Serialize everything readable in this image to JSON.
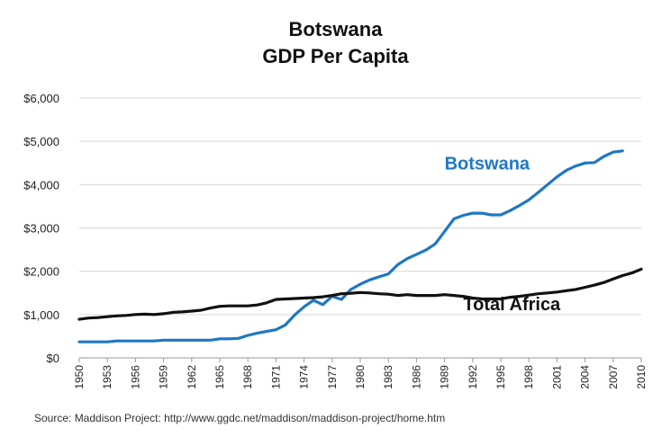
{
  "chart_data": {
    "type": "line",
    "title": "Botswana",
    "subtitle": "GDP Per Capita",
    "xlabel": "",
    "ylabel": "",
    "xlim": [
      1950,
      2010
    ],
    "ylim": [
      0,
      6000
    ],
    "y_ticks": [
      0,
      1000,
      2000,
      3000,
      4000,
      5000,
      6000
    ],
    "y_tick_labels": [
      "$0",
      "$1,000",
      "$2,000",
      "$3,000",
      "$4,000",
      "$5,000",
      "$6,000"
    ],
    "x_ticks": [
      1950,
      1953,
      1956,
      1959,
      1962,
      1965,
      1968,
      1971,
      1974,
      1977,
      1980,
      1983,
      1986,
      1989,
      1992,
      1995,
      1998,
      2001,
      2004,
      2007,
      2010
    ],
    "grid": "horizontal",
    "legend": "inline labels",
    "series": [
      {
        "name": "Botswana",
        "color": "#1f77c4",
        "label_at": [
          1989,
          4350
        ],
        "x": [
          1950,
          1951,
          1952,
          1953,
          1954,
          1955,
          1956,
          1957,
          1958,
          1959,
          1960,
          1961,
          1962,
          1963,
          1964,
          1965,
          1966,
          1967,
          1968,
          1969,
          1970,
          1971,
          1972,
          1973,
          1974,
          1975,
          1976,
          1977,
          1978,
          1979,
          1980,
          1981,
          1982,
          1983,
          1984,
          1985,
          1986,
          1987,
          1988,
          1989,
          1990,
          1991,
          1992,
          1993,
          1994,
          1995,
          1996,
          1997,
          1998,
          1999,
          2000,
          2001,
          2002,
          2003,
          2004,
          2005,
          2006,
          2007,
          2008
        ],
        "values": [
          370,
          370,
          370,
          370,
          390,
          390,
          390,
          390,
          390,
          410,
          410,
          410,
          410,
          410,
          410,
          440,
          440,
          450,
          520,
          570,
          610,
          650,
          760,
          990,
          1180,
          1330,
          1230,
          1420,
          1350,
          1580,
          1700,
          1800,
          1870,
          1940,
          2150,
          2290,
          2390,
          2490,
          2630,
          2920,
          3210,
          3290,
          3340,
          3340,
          3300,
          3300,
          3400,
          3520,
          3650,
          3820,
          4000,
          4180,
          4330,
          4430,
          4500,
          4510,
          4650,
          4750,
          4780
        ]
      },
      {
        "name": "Total Africa",
        "color": "#111111",
        "label_at": [
          1991,
          1100
        ],
        "x": [
          1950,
          1951,
          1952,
          1953,
          1954,
          1955,
          1956,
          1957,
          1958,
          1959,
          1960,
          1961,
          1962,
          1963,
          1964,
          1965,
          1966,
          1967,
          1968,
          1969,
          1970,
          1971,
          1972,
          1973,
          1974,
          1975,
          1976,
          1977,
          1978,
          1979,
          1980,
          1981,
          1982,
          1983,
          1984,
          1985,
          1986,
          1987,
          1988,
          1989,
          1990,
          1991,
          1992,
          1993,
          1994,
          1995,
          1996,
          1997,
          1998,
          1999,
          2000,
          2001,
          2002,
          2003,
          2004,
          2005,
          2006,
          2007,
          2008,
          2009,
          2010
        ],
        "values": [
          890,
          920,
          930,
          950,
          970,
          980,
          1000,
          1010,
          1000,
          1020,
          1050,
          1060,
          1080,
          1100,
          1150,
          1190,
          1200,
          1200,
          1200,
          1220,
          1270,
          1350,
          1360,
          1370,
          1380,
          1390,
          1410,
          1440,
          1480,
          1490,
          1510,
          1500,
          1480,
          1470,
          1440,
          1460,
          1440,
          1440,
          1440,
          1460,
          1440,
          1420,
          1380,
          1360,
          1360,
          1360,
          1400,
          1420,
          1450,
          1480,
          1500,
          1520,
          1550,
          1580,
          1630,
          1680,
          1740,
          1820,
          1900,
          1960,
          2050
        ]
      }
    ]
  },
  "source": "Source:  Maddison Project: http://www.ggdc.net/maddison/maddison-project/home.htm"
}
